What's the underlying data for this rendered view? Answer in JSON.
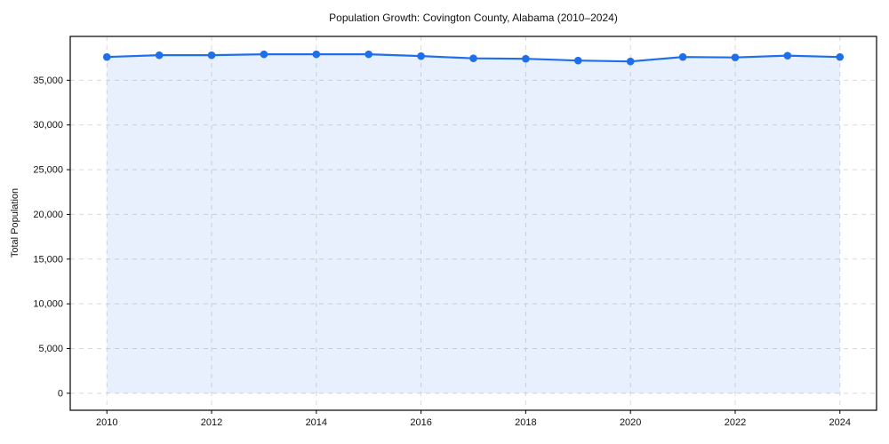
{
  "chart_data": {
    "type": "area",
    "title": "Population Growth: Covington County, Alabama (2010–2024)",
    "xlabel": "",
    "ylabel": "Total Population",
    "x": [
      2010,
      2011,
      2012,
      2013,
      2014,
      2015,
      2016,
      2017,
      2018,
      2019,
      2020,
      2021,
      2022,
      2023,
      2024
    ],
    "series": [
      {
        "name": "Total Population",
        "values": [
          37600,
          37800,
          37800,
          37900,
          37900,
          37900,
          37700,
          37450,
          37400,
          37200,
          37100,
          37600,
          37550,
          37750,
          37600
        ]
      }
    ],
    "xlim": [
      2009.3,
      2024.7
    ],
    "ylim": [
      -1900,
      39900
    ],
    "xticks": {
      "values": [
        2010,
        2012,
        2014,
        2016,
        2018,
        2020,
        2022,
        2024
      ],
      "labels": [
        "2010",
        "2012",
        "2014",
        "2016",
        "2018",
        "2020",
        "2022",
        "2024"
      ]
    },
    "yticks": {
      "values": [
        0,
        5000,
        10000,
        15000,
        20000,
        25000,
        30000,
        35000
      ],
      "labels": [
        "0",
        "5,000",
        "10,000",
        "15,000",
        "20,000",
        "25,000",
        "30,000",
        "35,000"
      ]
    },
    "grid": true,
    "grid_style": "dashed",
    "legend_position": "none",
    "marker": "circle",
    "colors": {
      "line": "#1f6feb",
      "marker": "#1f6feb",
      "fill": "#1f6feb",
      "fill_opacity": 0.1,
      "grid": "#d9d9d9",
      "spine": "#000000",
      "text": "#111111",
      "background": "#ffffff"
    }
  }
}
